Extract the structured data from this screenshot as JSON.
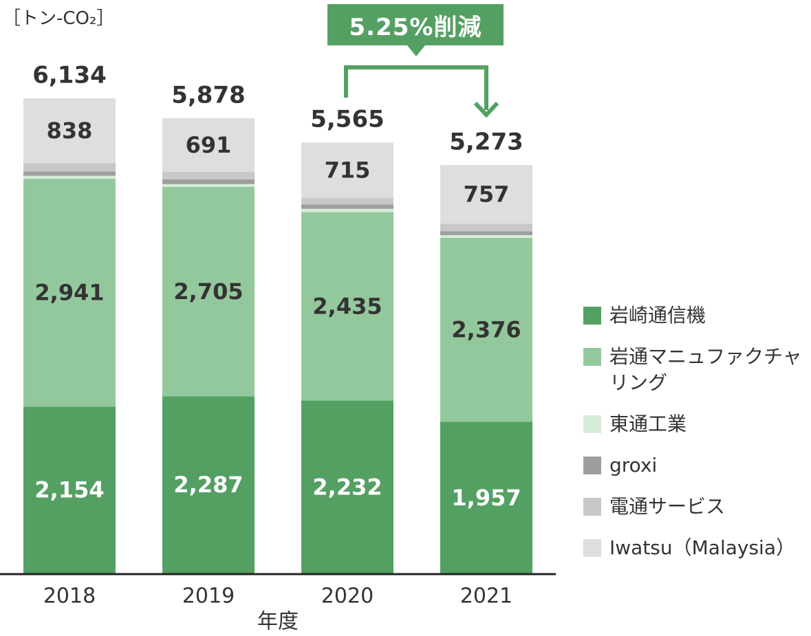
{
  "unit_label": "［トン-CO₂］",
  "callout": {
    "text": "5.25%削減",
    "from": "2020",
    "to": "2021"
  },
  "colors": {
    "iwasaki": "#54a063",
    "manufacturing": "#93c89d",
    "totsu": "#d6ecd9",
    "groxi": "#9e9e9e",
    "denstu": "#c8c8c8",
    "malaysia": "#dedede"
  },
  "legend": [
    {
      "key": "iwasaki",
      "label": "岩崎通信機"
    },
    {
      "key": "manufacturing",
      "label": "岩通マニュファクチャリング"
    },
    {
      "key": "totsu",
      "label": "東通工業"
    },
    {
      "key": "groxi",
      "label": "groxi"
    },
    {
      "key": "denstu",
      "label": "電通サービス"
    },
    {
      "key": "malaysia",
      "label": "Iwatsu（Malaysia）"
    }
  ],
  "chart_data": {
    "type": "bar",
    "stacked": true,
    "xlabel": "年度",
    "ylabel": "［トン-CO₂］",
    "ylim": [
      0,
      6134
    ],
    "grid": false,
    "legend_position": "right",
    "categories": [
      "2018",
      "2019",
      "2020",
      "2021"
    ],
    "totals": [
      6134,
      5878,
      5565,
      5273
    ],
    "total_labels": [
      "6,134",
      "5,878",
      "5,565",
      "5,273"
    ],
    "series": [
      {
        "name": "岩崎通信機",
        "key": "iwasaki",
        "values": [
          2154,
          2287,
          2232,
          1957
        ],
        "labels": [
          "2,154",
          "2,287",
          "2,232",
          "1,957"
        ]
      },
      {
        "name": "岩通マニュファクチャリング",
        "key": "manufacturing",
        "values": [
          2941,
          2705,
          2435,
          2376
        ],
        "labels": [
          "2,941",
          "2,705",
          "2,435",
          "2,376"
        ]
      },
      {
        "name": "東通工業",
        "key": "totsu",
        "values": [
          40,
          35,
          40,
          35
        ],
        "labels": null
      },
      {
        "name": "groxi",
        "key": "groxi",
        "values": [
          55,
          60,
          55,
          50
        ],
        "labels": null
      },
      {
        "name": "電通サービス",
        "key": "denstu",
        "values": [
          106,
          100,
          88,
          98
        ],
        "labels": null
      },
      {
        "name": "Iwatsu（Malaysia）",
        "key": "malaysia",
        "values": [
          838,
          691,
          715,
          757
        ],
        "labels": [
          "838",
          "691",
          "715",
          "757"
        ]
      }
    ]
  }
}
